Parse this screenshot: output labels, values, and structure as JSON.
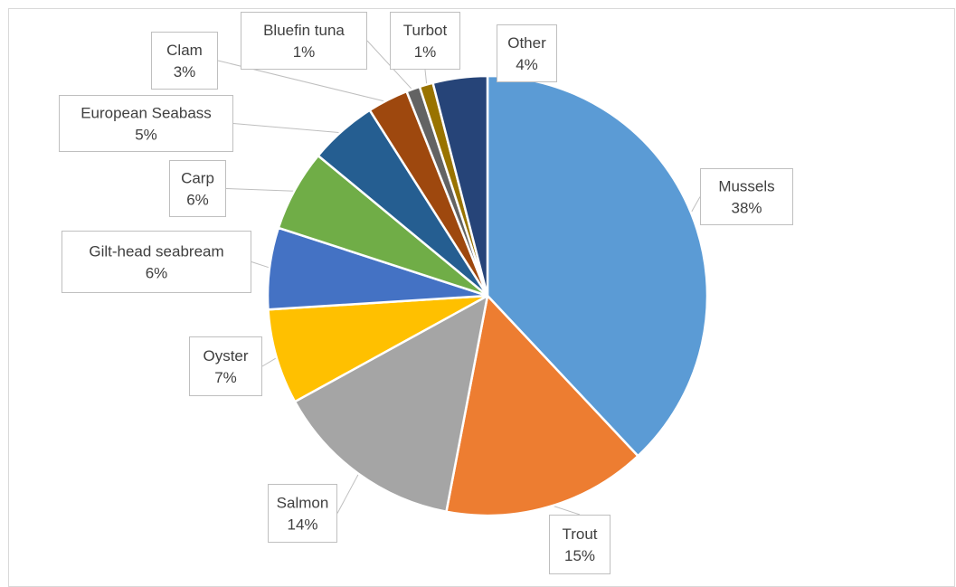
{
  "chart_data": {
    "type": "pie",
    "title": "",
    "start_angle_deg": 0,
    "direction": "clockwise",
    "slices": [
      {
        "name": "Mussels",
        "value": 38,
        "label": "38%",
        "color": "#5b9bd5"
      },
      {
        "name": "Trout",
        "value": 15,
        "label": "15%",
        "color": "#ed7d31"
      },
      {
        "name": "Salmon",
        "value": 14,
        "label": "14%",
        "color": "#a5a5a5"
      },
      {
        "name": "Oyster",
        "value": 7,
        "label": "7%",
        "color": "#ffc000"
      },
      {
        "name": "Gilt-head seabream",
        "value": 6,
        "label": "6%",
        "color": "#4472c4"
      },
      {
        "name": "Carp",
        "value": 6,
        "label": "6%",
        "color": "#70ad47"
      },
      {
        "name": "European Seabass",
        "value": 5,
        "label": "5%",
        "color": "#255e91"
      },
      {
        "name": "Clam",
        "value": 3,
        "label": "3%",
        "color": "#9e480e"
      },
      {
        "name": "Bluefin tuna",
        "value": 1,
        "label": "1%",
        "color": "#636363"
      },
      {
        "name": "Turbot",
        "value": 1,
        "label": "1%",
        "color": "#997300"
      },
      {
        "name": "Other",
        "value": 4,
        "label": "4%",
        "color": "#264478"
      }
    ]
  }
}
